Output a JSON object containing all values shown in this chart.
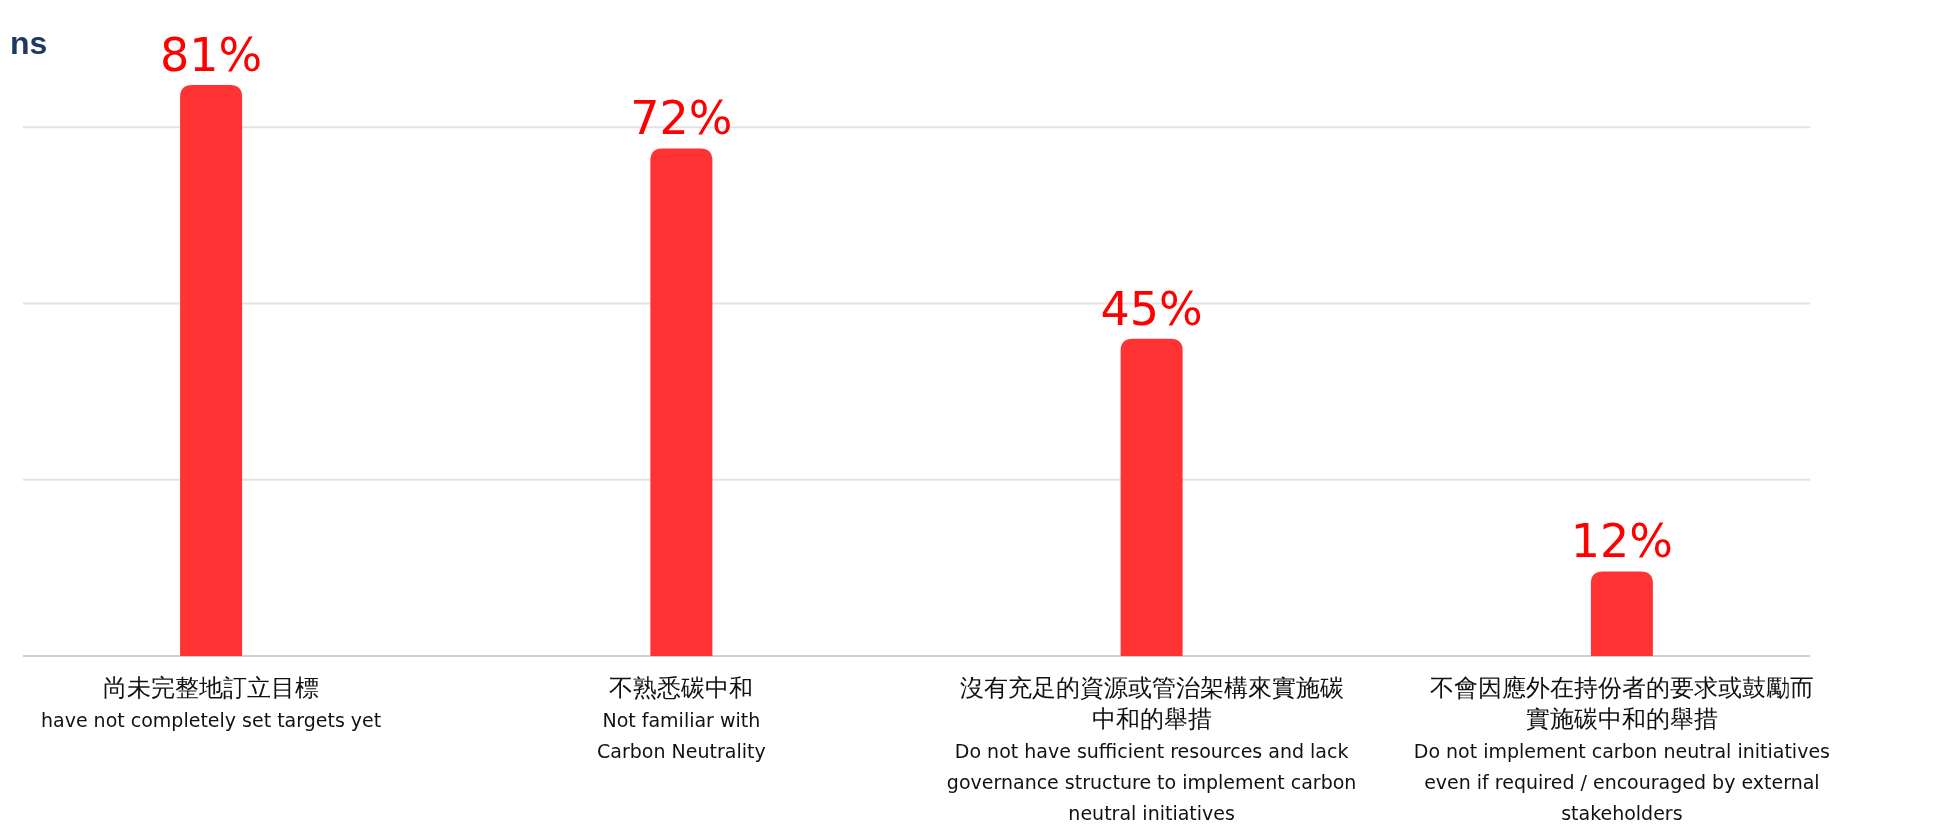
{
  "chart_data": {
    "type": "bar",
    "title": "ns",
    "categories": [
      "尚未完整地訂立目標\nhave not completely set targets yet",
      "不熟悉碳中和\nNot familiar with\nCarbon Neutrality",
      "沒有充足的資源或管治架構來實施碳中和的舉措\nDo not have sufficient resources and lack\ngovernance structure to implement carbon\nneutral initiatives",
      "不會因應外在持份者的要求或鼓勵而實施碳中和的舉措\nDo not implement carbon neutral initiatives\neven if required / encouraged by external\nstakeholders"
    ],
    "values": [
      81,
      72,
      45,
      12
    ],
    "color": "#ff3333",
    "value_labels": [
      "81%",
      "72%",
      "45%",
      "12%"
    ],
    "yticks": [
      {
        "value": 0,
        "label": null
      },
      {
        "value": 25,
        "label": null
      },
      {
        "value": 50,
        "label": null
      },
      {
        "value": 75,
        "label": null
      }
    ],
    "grid": "y"
  }
}
